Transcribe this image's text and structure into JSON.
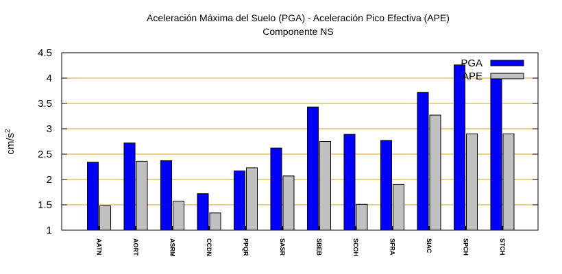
{
  "chart_data": {
    "type": "bar",
    "title": "Aceleración Máxima del Suelo (PGA) -  Aceleración Pico Efectiva (APE)",
    "subtitle": "Componente NS",
    "xlabel": "",
    "ylabel": "cm/s",
    "ylabel_superscript": "2",
    "ylim": [
      1,
      4.5
    ],
    "yticks": [
      "1",
      "1.5",
      "2",
      "2.5",
      "3",
      "3.5",
      "4",
      "4.5"
    ],
    "grid": "horizontal",
    "legend_position": "top-right",
    "categories": [
      "AATN",
      "AORT",
      "ASRM",
      "CCDN",
      "PPQR",
      "SASR",
      "SBEB",
      "SCOH",
      "SFRA",
      "SIAC",
      "SPCH",
      "STCH"
    ],
    "series": [
      {
        "name": "PGA",
        "color": "#0000ff",
        "values": [
          2.34,
          2.72,
          2.37,
          1.72,
          2.17,
          2.62,
          3.43,
          2.89,
          2.77,
          3.72,
          4.26,
          3.98
        ]
      },
      {
        "name": "APE",
        "color": "#c0c0c0",
        "values": [
          1.48,
          2.36,
          1.57,
          1.34,
          2.23,
          2.07,
          2.75,
          1.51,
          1.9,
          3.27,
          2.9,
          2.9
        ]
      }
    ],
    "colors": {
      "grid": "#d4a017",
      "axis": "#000000"
    }
  }
}
